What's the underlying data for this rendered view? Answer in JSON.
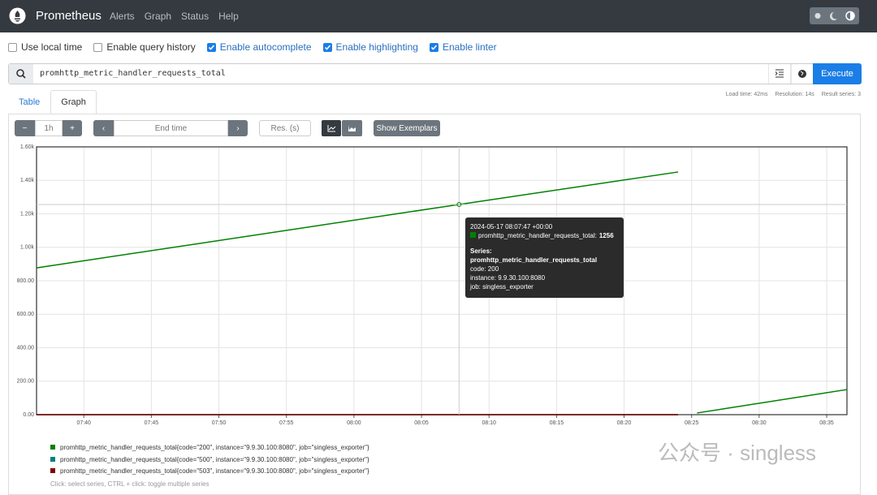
{
  "navbar": {
    "brand": "Prometheus",
    "links": [
      "Alerts",
      "Graph",
      "Status",
      "Help"
    ]
  },
  "options": [
    {
      "label": "Use local time",
      "checked": false
    },
    {
      "label": "Enable query history",
      "checked": false
    },
    {
      "label": "Enable autocomplete",
      "checked": true
    },
    {
      "label": "Enable highlighting",
      "checked": true
    },
    {
      "label": "Enable linter",
      "checked": true
    }
  ],
  "query": {
    "expression": "promhttp_metric_handler_requests_total",
    "button": "Execute"
  },
  "tabs": {
    "items": [
      "Table",
      "Graph"
    ],
    "active": 1
  },
  "stats": [
    "Load time: 42ms",
    "Resolution: 14s",
    "Result series: 3"
  ],
  "controls": {
    "range": "1h",
    "end_time": "End time",
    "resolution": "Res. (s)",
    "exemplars": "Show Exemplars"
  },
  "chart_data": {
    "type": "line",
    "x": [
      456.5,
      487.783,
      504.0,
      505.0,
      505.4,
      516.5
    ],
    "series": [
      {
        "name": "promhttp_metric_handler_requests_total{code=\"200\", instance=\"9.9.30.100:8080\", job=\"singless_exporter\"}",
        "color": "#008000",
        "values": [
          877,
          1256,
          1450,
          null,
          10,
          150
        ]
      },
      {
        "name": "promhttp_metric_handler_requests_total{code=\"500\", instance=\"9.9.30.100:8080\", job=\"singless_exporter\"}",
        "color": "#008080",
        "values": [
          0,
          0,
          0,
          null,
          null,
          null
        ]
      },
      {
        "name": "promhttp_metric_handler_requests_total{code=\"503\", instance=\"9.9.30.100:8080\", job=\"singless_exporter\"}",
        "color": "#800000",
        "values": [
          0,
          0,
          0,
          null,
          null,
          null
        ]
      }
    ],
    "xlim": [
      456.5,
      516.5
    ],
    "xticks": [
      {
        "value": 460,
        "label": "07:40"
      },
      {
        "value": 465,
        "label": "07:45"
      },
      {
        "value": 470,
        "label": "07:50"
      },
      {
        "value": 475,
        "label": "07:55"
      },
      {
        "value": 480,
        "label": "08:00"
      },
      {
        "value": 485,
        "label": "08:05"
      },
      {
        "value": 490,
        "label": "08:10"
      },
      {
        "value": 495,
        "label": "08:15"
      },
      {
        "value": 500,
        "label": "08:20"
      },
      {
        "value": 505,
        "label": "08:25"
      },
      {
        "value": 510,
        "label": "08:30"
      },
      {
        "value": 515,
        "label": "08:35"
      }
    ],
    "ylim": [
      0,
      1600
    ],
    "yticks": [
      {
        "value": 0,
        "label": "0.00"
      },
      {
        "value": 200,
        "label": "200.00"
      },
      {
        "value": 400,
        "label": "400.00"
      },
      {
        "value": 600,
        "label": "600.00"
      },
      {
        "value": 800,
        "label": "800.00"
      },
      {
        "value": 1000,
        "label": "1.00k"
      },
      {
        "value": 1200,
        "label": "1.20k"
      },
      {
        "value": 1400,
        "label": "1.40k"
      },
      {
        "value": 1600,
        "label": "1.60k"
      }
    ],
    "grid": true
  },
  "tooltip": {
    "time": "2024-05-17 08:07:47 +00:00",
    "metric": "promhttp_metric_handler_requests_total:",
    "heading": "Series:",
    "series": "promhttp_metric_handler_requests_total",
    "labels": [
      "code: 200",
      "instance: 9.9.30.100:8080",
      "job: singless_exporter"
    ]
  },
  "hint": "Click: select series, CTRL + click: toggle multiple series",
  "watermark": "公众号 · singless"
}
